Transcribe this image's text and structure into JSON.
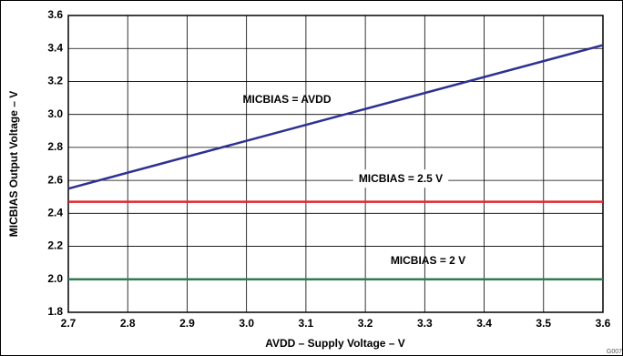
{
  "chart_data": {
    "type": "line",
    "x_label": "AVDD – Supply Voltage – V",
    "y_label": "MICBIAS Output Voltage – V",
    "note": "G007",
    "x": [
      2.7,
      3.6
    ],
    "series": [
      {
        "name": "MICBIAS = AVDD",
        "color": "#2e3192",
        "values": [
          2.55,
          3.42
        ]
      },
      {
        "name": "MICBIAS = 2.5 V",
        "color": "#e0282e",
        "values": [
          2.47,
          2.47
        ]
      },
      {
        "name": "MICBIAS = 2 V",
        "color": "#2e7d4f",
        "values": [
          2.0,
          2.0
        ]
      }
    ],
    "xlim": [
      2.7,
      3.6
    ],
    "xticks": [
      2.7,
      2.8,
      2.9,
      {
        "value": 3,
        "label": "3.0"
      },
      3.1,
      3.2,
      3.3,
      3.4,
      3.5,
      3.6
    ],
    "ylim": [
      1.8,
      3.6
    ],
    "yticks": [
      1.8,
      {
        "value": 2,
        "label": "2.0"
      },
      2.2,
      2.4,
      2.6,
      2.8,
      {
        "value": 3,
        "label": "3.0"
      },
      3.2,
      3.4,
      3.6
    ],
    "grid": true
  }
}
